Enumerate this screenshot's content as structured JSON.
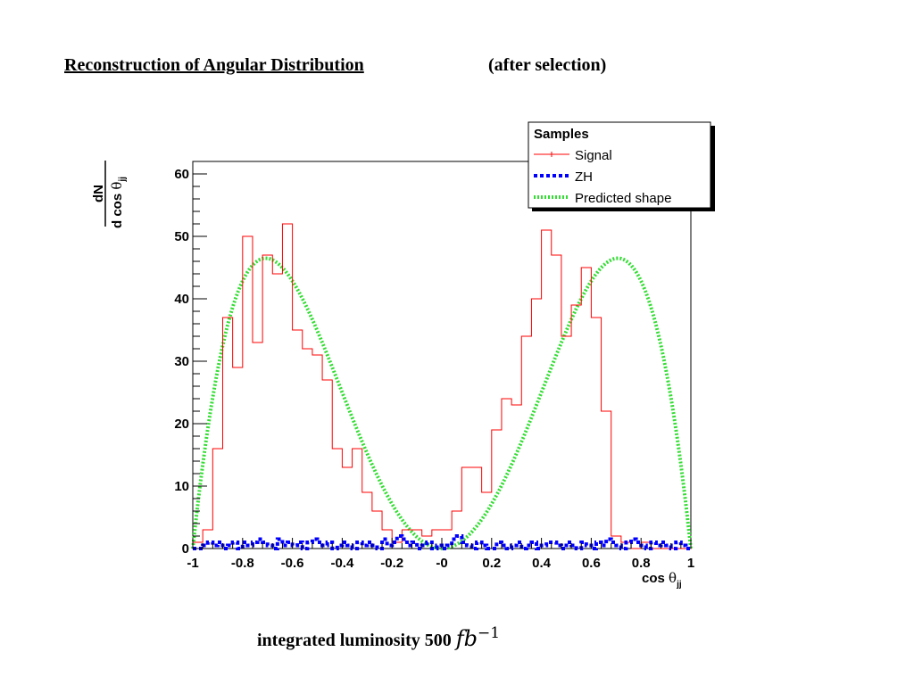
{
  "slide": {
    "title": "Reconstruction of Angular Distribution",
    "subtitle": "(after selection)",
    "footer_prefix": "integrated luminosity 500",
    "footer_unit": "fb",
    "footer_exponent": "−1"
  },
  "chart_data": {
    "type": "line",
    "ylabel_num": "dN",
    "ylabel_den": "d cos",
    "xlabel": "cos",
    "theta": "θ",
    "sub": "jj",
    "xlim": [
      -1,
      1
    ],
    "ylim": [
      0,
      62
    ],
    "x_ticks": [
      "-1",
      "-0.8",
      "-0.6",
      "-0.4",
      "-0.2",
      "-0",
      "0.2",
      "0.4",
      "0.6",
      "0.8",
      "1"
    ],
    "y_ticks": [
      "0",
      "10",
      "20",
      "30",
      "40",
      "50",
      "60"
    ],
    "legend_position": "top-right",
    "legend": {
      "header": "Samples",
      "entries": [
        "Signal",
        "ZH",
        "Predicted shape"
      ]
    },
    "colors": {
      "signal": "#ff0000",
      "zh": "#0000ff",
      "predicted": "#33dd33"
    },
    "bin_edges_range": [
      -1,
      1
    ],
    "series": [
      {
        "name": "Signal",
        "style": "histogram",
        "bin_width": 0.04,
        "values": [
          1,
          3,
          16,
          37,
          29,
          50,
          33,
          47,
          44,
          52,
          35,
          32,
          31,
          27,
          16,
          13,
          16,
          9,
          6,
          3,
          1,
          3,
          3,
          2,
          3,
          3,
          6,
          13,
          13,
          9,
          19,
          24,
          23,
          34,
          40,
          51,
          47,
          34,
          39,
          45,
          37,
          22,
          2,
          1,
          0,
          1,
          0,
          0,
          0,
          0
        ]
      },
      {
        "name": "ZH",
        "style": "histogram",
        "bin_width": 0.02,
        "values": [
          0,
          0,
          0.5,
          1,
          0.5,
          1,
          0,
          0.5,
          1,
          0,
          1,
          0.5,
          1,
          1.5,
          1,
          0.5,
          0,
          1.5,
          0.5,
          1,
          0.5,
          1,
          0,
          1,
          1.5,
          1,
          0.5,
          1,
          0,
          0.5,
          1,
          0.5,
          0,
          1,
          0.5,
          1,
          0.5,
          0,
          1.5,
          0.5,
          1,
          2,
          1.5,
          0.5,
          1,
          0,
          0.5,
          1,
          0,
          0.5,
          0,
          0.5,
          1.5,
          2,
          1,
          0.5,
          0,
          1,
          0.5,
          0,
          0,
          1,
          0.5,
          0,
          0.5,
          1,
          0,
          0.5,
          1,
          0,
          0.5,
          1,
          1,
          0.5,
          0,
          1,
          0.5,
          0,
          1,
          0.5,
          0,
          1,
          0.5,
          1.5,
          1,
          0.5,
          0,
          1,
          1.5,
          1,
          0.5,
          0,
          1,
          0.5,
          1,
          0.5,
          0,
          1,
          0.5,
          0
        ]
      },
      {
        "name": "Predicted shape",
        "style": "curve",
        "formula": "A*x^2*(1-x^2)",
        "amplitude": 186
      }
    ]
  }
}
